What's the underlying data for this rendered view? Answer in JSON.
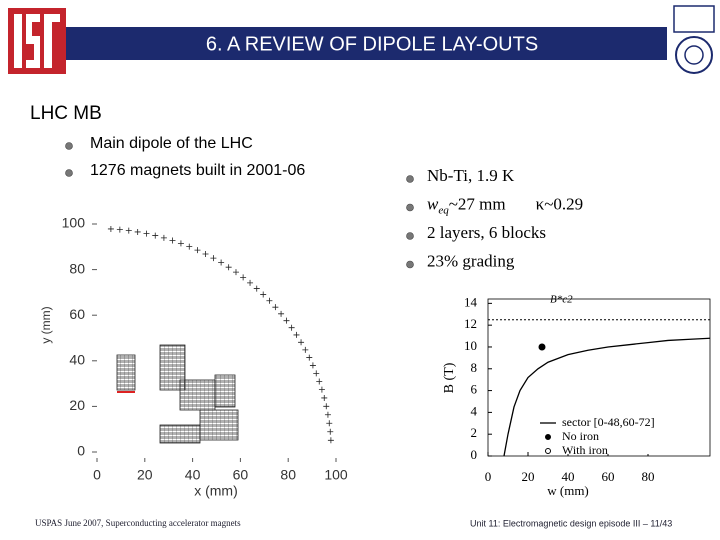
{
  "header": {
    "title": "6. A REVIEW OF DIPOLE LAY-OUTS"
  },
  "section_title": "LHC MB",
  "bullets_left": [
    "Main dipole of the LHC",
    "1276 magnets built in 2001-06"
  ],
  "bullets_right": [
    {
      "text": "Nb-Ti, 1.9 K"
    },
    {
      "text": "w",
      "sub": "eq",
      "rest": "~27 mm",
      "extra": "κ~0.29"
    },
    {
      "text": "2 layers, 6 blocks"
    },
    {
      "text": "23% grading"
    }
  ],
  "figure_left": {
    "xlabel": "x (mm)",
    "ylabel": "y (mm)",
    "xlim": [
      0,
      100
    ],
    "ylim": [
      0,
      100
    ],
    "xticks": [
      0,
      20,
      40,
      60,
      80,
      100
    ],
    "yticks": [
      0,
      20,
      40,
      60,
      80,
      100
    ]
  },
  "figure_right": {
    "type": "line",
    "xlabel": "w (mm)",
    "ylabel": "B (T)",
    "annotation": "B*c2",
    "xlim": [
      0,
      111
    ],
    "ylim": [
      0,
      14.4
    ],
    "xticks": [
      0,
      20,
      40,
      60,
      80
    ],
    "yticks": [
      0,
      2,
      4,
      6,
      8,
      10,
      12,
      14
    ],
    "series": [
      {
        "name": "sector [0-48,60-72]",
        "color": "#000000",
        "x": [
          8,
          10,
          13,
          16,
          20,
          25,
          30,
          40,
          50,
          60,
          70,
          80,
          90,
          100,
          111
        ],
        "values": [
          0,
          2,
          4.5,
          6,
          7.2,
          8,
          8.6,
          9.3,
          9.7,
          10,
          10.2,
          10.4,
          10.6,
          10.7,
          10.8
        ]
      },
      {
        "name": "No iron",
        "color": "#000000",
        "x": [
          27
        ],
        "values": [
          10
        ]
      },
      {
        "name": "With iron",
        "color": "#000000",
        "x": [],
        "values": []
      }
    ],
    "bc2_level": 12.5
  },
  "footer": {
    "left": "USPAS June 2007,  Superconducting accelerator magnets",
    "right": "Unit 11: Electromagnetic design episode III – 11/43"
  }
}
